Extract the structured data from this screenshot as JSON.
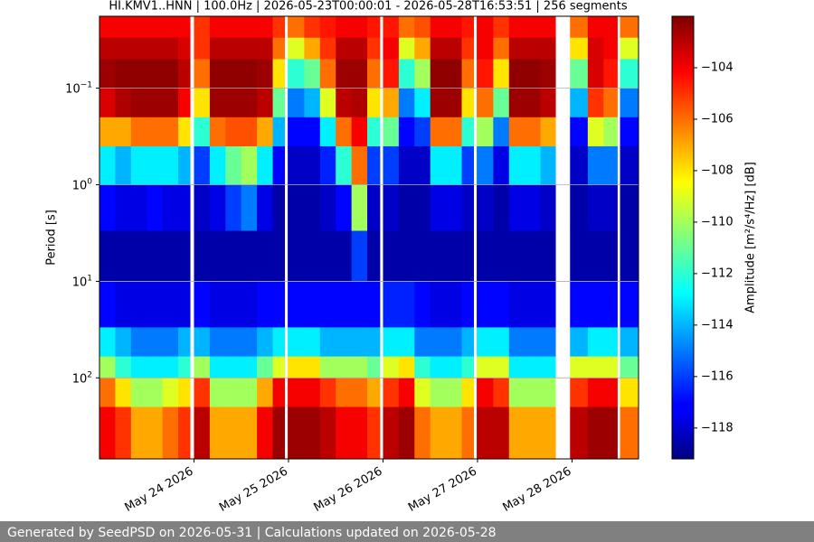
{
  "chart_data": {
    "type": "heatmap",
    "title": "HI.KMV1..HNN | 100.0Hz | 2026-05-23T00:00:01 - 2026-05-28T16:53:51 | 256 segments",
    "ylabel": "Period [s]",
    "colorbar_label": "Amplitude [m²/s⁴/Hz] [dB]",
    "footer": "Generated by SeedPSD on 2026-05-31 | Calculations updated on 2026-05-28",
    "colormap": "jet",
    "yscale": "log",
    "yinvert": true,
    "grid": true,
    "xlim": [
      "2026-05-23T00:00:01",
      "2026-05-28T16:53:51"
    ],
    "ylim": [
      0.018,
      690
    ],
    "clim": [
      -119.2,
      -102.0
    ],
    "xticks": [
      {
        "value": "2026-05-24",
        "label": "May 24 2026"
      },
      {
        "value": "2026-05-25",
        "label": "May 25 2026"
      },
      {
        "value": "2026-05-26",
        "label": "May 26 2026"
      },
      {
        "value": "2026-05-27",
        "label": "May 27 2026"
      },
      {
        "value": "2026-05-28",
        "label": "May 28 2026"
      }
    ],
    "yticks": [
      {
        "value": 0.1,
        "label": "10",
        "exponent": "−1"
      },
      {
        "value": 1,
        "label": "10",
        "exponent": "0"
      },
      {
        "value": 10,
        "label": "10",
        "exponent": "1"
      },
      {
        "value": 100,
        "label": "10",
        "exponent": "2"
      }
    ],
    "cticks": [
      {
        "value": -104,
        "label": "−104"
      },
      {
        "value": -106,
        "label": "−106"
      },
      {
        "value": -108,
        "label": "−108"
      },
      {
        "value": -110,
        "label": "−110"
      },
      {
        "value": -112,
        "label": "−112"
      },
      {
        "value": -114,
        "label": "−114"
      },
      {
        "value": -116,
        "label": "−116"
      },
      {
        "value": -118,
        "label": "−118"
      }
    ],
    "time_edges": [
      "2026-05-23T00:00",
      "2026-05-23T04:00",
      "2026-05-23T08:00",
      "2026-05-23T12:00",
      "2026-05-23T16:00",
      "2026-05-23T20:00",
      "2026-05-23T23:00",
      "2026-05-24T00:00",
      "2026-05-24T04:00",
      "2026-05-24T08:00",
      "2026-05-24T12:00",
      "2026-05-24T16:00",
      "2026-05-24T20:00",
      "2026-05-24T23:00",
      "2026-05-24T23:48",
      "2026-05-25T04:00",
      "2026-05-25T08:00",
      "2026-05-25T12:00",
      "2026-05-25T16:00",
      "2026-05-25T20:00",
      "2026-05-25T23:12",
      "2026-05-26T00:00",
      "2026-05-26T04:00",
      "2026-05-26T08:00",
      "2026-05-26T12:00",
      "2026-05-26T16:00",
      "2026-05-26T20:00",
      "2026-05-26T23:00",
      "2026-05-26T23:48",
      "2026-05-27T04:00",
      "2026-05-27T08:00",
      "2026-05-27T12:00",
      "2026-05-27T16:00",
      "2026-05-27T19:48",
      "2026-05-27T23:30",
      "2026-05-28T04:00",
      "2026-05-28T08:00",
      "2026-05-28T11:30",
      "2026-05-28T12:12",
      "2026-05-28T16:54"
    ],
    "period_edges": [
      0.018,
      0.03,
      0.05,
      0.1,
      0.2,
      0.4,
      1,
      3,
      10,
      30,
      60,
      100,
      200,
      690
    ],
    "values": [
      [
        -104,
        -103,
        -102.5,
        -103.5,
        -107,
        -113,
        -117,
        -118.5,
        -117,
        -113,
        -110,
        -106,
        -104
      ],
      [
        -104,
        -103,
        -102.3,
        -102.8,
        -107,
        -114,
        -117.5,
        -118.5,
        -117.5,
        -114,
        -112,
        -108,
        -105
      ],
      [
        -104,
        -103,
        -102.3,
        -102.5,
        -106,
        -113,
        -117.5,
        -118.5,
        -117.5,
        -115,
        -113,
        -110,
        -107
      ],
      [
        -104,
        -103,
        -102.3,
        -102.5,
        -106,
        -113,
        -117,
        -118.5,
        -117.5,
        -115,
        -113,
        -110,
        -107
      ],
      [
        -104,
        -103,
        -102.3,
        -102.5,
        -106,
        -113,
        -117.5,
        -118.5,
        -117.5,
        -115,
        -113,
        -109,
        -106
      ],
      [
        -104,
        -103.5,
        -103,
        -104,
        -108,
        -114,
        -117.5,
        -118.5,
        -117.5,
        -114,
        -112,
        -108,
        -105
      ],
      null,
      [
        -105,
        -105,
        -106,
        -108,
        -112,
        -116,
        -118,
        -118.5,
        -117,
        -114,
        -110,
        -105,
        -103
      ],
      [
        -104,
        -103,
        -102.3,
        -102.5,
        -106,
        -113,
        -117.5,
        -118.5,
        -117.5,
        -115,
        -113,
        -110,
        -107
      ],
      [
        -104,
        -103,
        -102.3,
        -102.5,
        -105.5,
        -111,
        -116,
        -118.5,
        -117.5,
        -115,
        -113,
        -110,
        -107
      ],
      [
        -104,
        -103,
        -102.3,
        -102.5,
        -105.5,
        -110,
        -115,
        -118.5,
        -117.5,
        -115,
        -113,
        -110,
        -107
      ],
      [
        -104,
        -103,
        -102.5,
        -103,
        -107,
        -113,
        -117.5,
        -118.5,
        -117,
        -114,
        -111,
        -107,
        -104
      ],
      [
        -105,
        -106,
        -108,
        -111,
        -114,
        -117,
        -118.5,
        -118.5,
        -117,
        -113,
        -109,
        -104,
        -102.5
      ],
      null,
      [
        -106,
        -109,
        -112,
        -115,
        -117,
        -118,
        -118.5,
        -118.5,
        -117,
        -113,
        -108,
        -104,
        -102.5
      ],
      [
        -105,
        -107,
        -111,
        -114,
        -117,
        -118,
        -118.5,
        -118.5,
        -117,
        -113,
        -108,
        -104,
        -102.5
      ],
      [
        -104.5,
        -105,
        -106,
        -109,
        -113,
        -116.5,
        -118,
        -118.5,
        -117,
        -114,
        -110,
        -105,
        -103
      ],
      [
        -104,
        -103,
        -102.5,
        -103,
        -106,
        -112,
        -117,
        -118.5,
        -117,
        -114,
        -110,
        -106,
        -104
      ],
      [
        -104,
        -103,
        -102.5,
        -102.8,
        -104,
        -106,
        -110,
        -116,
        -117,
        -114,
        -110,
        -106,
        -104
      ],
      [
        -104.5,
        -105,
        -106,
        -108,
        -112,
        -116,
        -118,
        -118.5,
        -117,
        -114,
        -111,
        -107,
        -105
      ],
      null,
      [
        -104.5,
        -104,
        -104.5,
        -107,
        -111,
        -116,
        -118,
        -118.5,
        -116.5,
        -113,
        -109,
        -105,
        -103
      ],
      [
        -106,
        -109,
        -112,
        -115,
        -117,
        -118,
        -118.5,
        -118.5,
        -116.5,
        -113,
        -108,
        -104,
        -102.5
      ],
      [
        -105.5,
        -107,
        -110,
        -113,
        -116,
        -118,
        -118.5,
        -118.5,
        -117,
        -115,
        -112,
        -109,
        -106
      ],
      [
        -104,
        -103,
        -102.3,
        -102.5,
        -106,
        -113,
        -117.5,
        -118.5,
        -117.5,
        -115,
        -113,
        -110,
        -107
      ],
      [
        -104,
        -103,
        -102.3,
        -102.5,
        -106,
        -113,
        -117.5,
        -118.5,
        -117.5,
        -115,
        -113,
        -110,
        -107
      ],
      [
        -104.5,
        -105,
        -106,
        -108,
        -112,
        -116,
        -118,
        -118.5,
        -117,
        -114,
        -112,
        -108,
        -106
      ],
      null,
      [
        -104,
        -104,
        -104.5,
        -106,
        -110,
        -115,
        -118,
        -118.5,
        -117,
        -113,
        -109,
        -104,
        -103
      ],
      [
        -105,
        -106,
        -108,
        -111,
        -115,
        -117.5,
        -118.5,
        -118.5,
        -117,
        -113,
        -109,
        -105,
        -103
      ],
      [
        -104,
        -103,
        -102.3,
        -102.5,
        -106,
        -113,
        -117.5,
        -118.5,
        -117.5,
        -115,
        -113,
        -110,
        -107
      ],
      [
        -104,
        -103,
        -102.3,
        -102.5,
        -106,
        -113,
        -117.5,
        -118.5,
        -117.5,
        -115,
        -113,
        -110,
        -107
      ],
      [
        -104,
        -103,
        -102.5,
        -103,
        -107,
        -114,
        -118,
        -118.5,
        -117.5,
        -115,
        -113,
        -110,
        -107
      ],
      null,
      [
        -106,
        -108,
        -111,
        -114,
        -117,
        -118,
        -118.5,
        -118.5,
        -117,
        -114,
        -109,
        -105,
        -103
      ],
      [
        -104,
        -103.5,
        -103.5,
        -105,
        -109,
        -115,
        -118,
        -118.5,
        -117,
        -113,
        -109,
        -104,
        -102.5
      ],
      [
        -104,
        -104,
        -104.5,
        -106,
        -110,
        -115,
        -118,
        -118.5,
        -117,
        -113,
        -109,
        -104,
        -102.5
      ],
      null,
      [
        -106,
        -109,
        -112,
        -115,
        -117,
        -118,
        -118.5,
        -118.5,
        -117,
        -114,
        -111,
        -108,
        -106
      ]
    ]
  }
}
